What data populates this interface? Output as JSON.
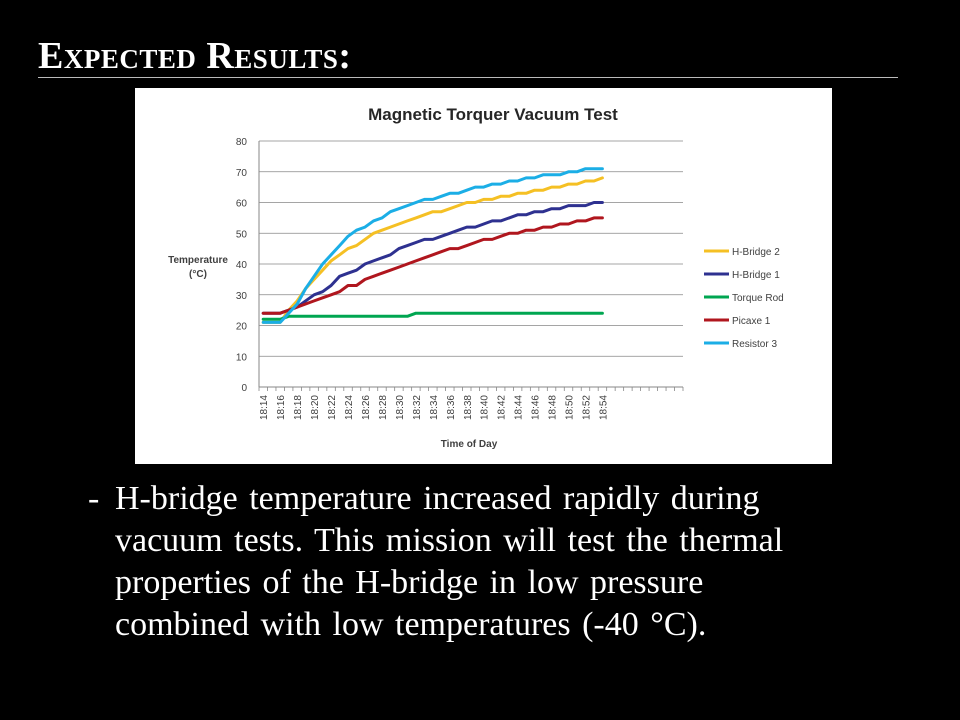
{
  "slide": {
    "title": "Expected Results:",
    "bullet_dash": "-",
    "bullet_lines": [
      "H-bridge temperature increased rapidly during",
      "vacuum tests.  This mission will test the thermal",
      "properties of the H-bridge in low pressure",
      "combined with low temperatures (-40 °C)."
    ]
  },
  "chart_data": {
    "type": "line",
    "title": "Magnetic Torquer Vacuum Test",
    "xlabel": "Time of Day",
    "ylabel_lines": [
      "Temperature",
      "(°C)"
    ],
    "ylim": [
      0,
      80
    ],
    "yticks": [
      0,
      10,
      20,
      30,
      40,
      50,
      60,
      70,
      80
    ],
    "grid": true,
    "legend_position": "right",
    "x_tick_labels": [
      "18:14",
      "18:16",
      "18:18",
      "18:20",
      "18:22",
      "18:24",
      "18:26",
      "18:28",
      "18:30",
      "18:32",
      "18:34",
      "18:36",
      "18:38",
      "18:40",
      "18:42",
      "18:44",
      "18:46",
      "18:48",
      "18:50",
      "18:52",
      "18:54"
    ],
    "x_slot_count": 50,
    "series": [
      {
        "name": "H-Bridge 2",
        "color": "#F5C024",
        "values": [
          21,
          21,
          21,
          25,
          28,
          32,
          35,
          38,
          41,
          43,
          45,
          46,
          48,
          50,
          51,
          52,
          53,
          54,
          55,
          56,
          57,
          57,
          58,
          59,
          60,
          60,
          61,
          61,
          62,
          62,
          63,
          63,
          64,
          64,
          65,
          65,
          66,
          66,
          67,
          67,
          68
        ]
      },
      {
        "name": "H-Bridge 1",
        "color": "#2E3190",
        "values": [
          24,
          24,
          24,
          25,
          26,
          28,
          30,
          31,
          33,
          36,
          37,
          38,
          40,
          41,
          42,
          43,
          45,
          46,
          47,
          48,
          48,
          49,
          50,
          51,
          52,
          52,
          53,
          54,
          54,
          55,
          56,
          56,
          57,
          57,
          58,
          58,
          59,
          59,
          59,
          60,
          60
        ]
      },
      {
        "name": "Torque Rod",
        "color": "#00A651",
        "values": [
          22,
          22,
          22,
          23,
          23,
          23,
          23,
          23,
          23,
          23,
          23,
          23,
          23,
          23,
          23,
          23,
          23,
          23,
          24,
          24,
          24,
          24,
          24,
          24,
          24,
          24,
          24,
          24,
          24,
          24,
          24,
          24,
          24,
          24,
          24,
          24,
          24,
          24,
          24,
          24,
          24
        ]
      },
      {
        "name": "Picaxe 1",
        "color": "#B0161E",
        "values": [
          24,
          24,
          24,
          25,
          26,
          27,
          28,
          29,
          30,
          31,
          33,
          33,
          35,
          36,
          37,
          38,
          39,
          40,
          41,
          42,
          43,
          44,
          45,
          45,
          46,
          47,
          48,
          48,
          49,
          50,
          50,
          51,
          51,
          52,
          52,
          53,
          53,
          54,
          54,
          55,
          55
        ]
      },
      {
        "name": "Resistor 3",
        "color": "#1BAEE6",
        "values": [
          21,
          21,
          21,
          24,
          27,
          32,
          36,
          40,
          43,
          46,
          49,
          51,
          52,
          54,
          55,
          57,
          58,
          59,
          60,
          61,
          61,
          62,
          63,
          63,
          64,
          65,
          65,
          66,
          66,
          67,
          67,
          68,
          68,
          69,
          69,
          69,
          70,
          70,
          71,
          71,
          71
        ]
      }
    ]
  }
}
